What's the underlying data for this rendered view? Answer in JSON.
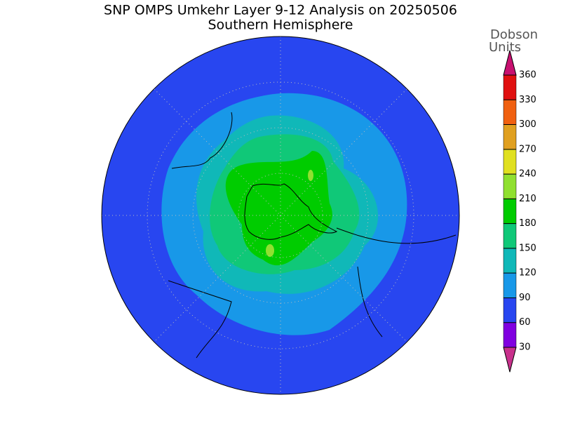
{
  "header": {
    "title": "SNP OMPS Umkehr Layer 9-12 Analysis on 20250506",
    "subtitle": "Southern Hemisphere"
  },
  "colorbar": {
    "label": [
      "Dobson",
      "Units"
    ],
    "ticks": [
      30,
      60,
      90,
      120,
      150,
      180,
      210,
      240,
      270,
      300,
      330,
      360
    ],
    "colors": [
      "#c8308c",
      "#8000e0",
      "#2846f0",
      "#1898e8",
      "#10b8b8",
      "#10c878",
      "#00cc00",
      "#90e030",
      "#e0e020",
      "#e0a020",
      "#f06010",
      "#e01010",
      "#c81070"
    ]
  }
}
